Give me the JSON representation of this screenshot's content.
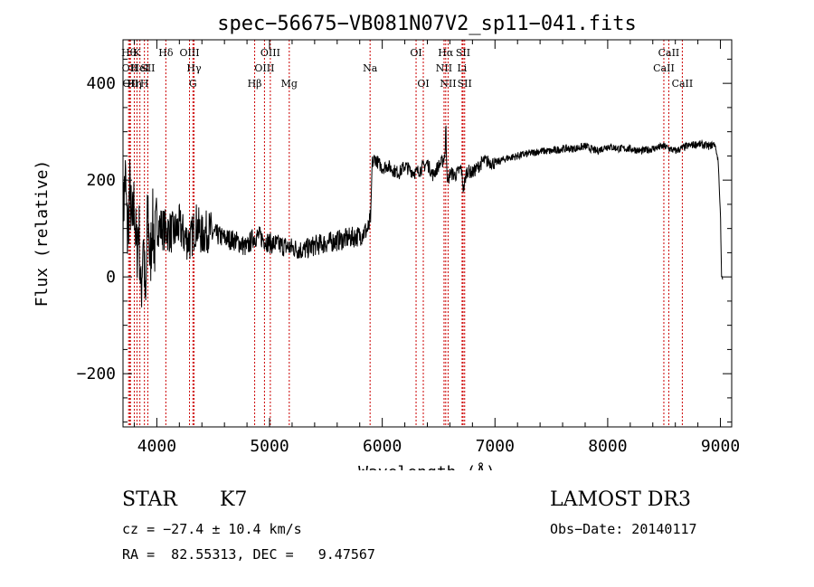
{
  "chart_data": {
    "type": "line",
    "title": "spec−56675−VB081N07V2_sp11−041.fits",
    "xlabel": "Wavelength (Å)",
    "ylabel": "Flux (relative)",
    "xlim": [
      3700,
      9100
    ],
    "ylim": [
      -310,
      490
    ],
    "xticks": [
      {
        "value": 4000,
        "label": "4000"
      },
      {
        "value": 5000,
        "label": "5000"
      },
      {
        "value": 6000,
        "label": "6000"
      },
      {
        "value": 7000,
        "label": "7000"
      },
      {
        "value": 8000,
        "label": "8000"
      },
      {
        "value": 9000,
        "label": "9000"
      }
    ],
    "yticks": [
      {
        "value": -200,
        "label": "−200"
      },
      {
        "value": 0,
        "label": "0"
      },
      {
        "value": 200,
        "label": "200"
      },
      {
        "value": 400,
        "label": "400"
      }
    ],
    "line_color": "#cc0000",
    "series": [
      {
        "name": "flux",
        "x": [
          3700,
          3720,
          3740,
          3760,
          3780,
          3800,
          3820,
          3840,
          3860,
          3880,
          3900,
          3920,
          3940,
          3960,
          3980,
          4000,
          4050,
          4100,
          4150,
          4200,
          4250,
          4300,
          4350,
          4400,
          4450,
          4500,
          4600,
          4700,
          4800,
          4850,
          4900,
          5000,
          5100,
          5200,
          5300,
          5400,
          5500,
          5600,
          5700,
          5800,
          5880,
          5900,
          5910,
          5920,
          5930,
          5950,
          6000,
          6050,
          6100,
          6150,
          6200,
          6250,
          6300,
          6350,
          6400,
          6450,
          6500,
          6540,
          6560,
          6564,
          6570,
          6580,
          6600,
          6650,
          6700,
          6720,
          6750,
          6800,
          6900,
          7000,
          7100,
          7200,
          7300,
          7400,
          7500,
          7600,
          7700,
          7800,
          7900,
          8000,
          8100,
          8200,
          8300,
          8400,
          8500,
          8600,
          8700,
          8800,
          8900,
          8950,
          8980,
          9000,
          9010,
          9020
        ],
        "y": [
          120,
          210,
          80,
          180,
          90,
          160,
          40,
          120,
          -50,
          100,
          -80,
          150,
          20,
          120,
          60,
          110,
          100,
          95,
          90,
          105,
          80,
          75,
          110,
          85,
          95,
          90,
          80,
          75,
          60,
          80,
          85,
          70,
          65,
          60,
          55,
          65,
          70,
          75,
          80,
          85,
          100,
          130,
          240,
          235,
          245,
          240,
          225,
          230,
          220,
          215,
          230,
          220,
          215,
          225,
          235,
          210,
          230,
          240,
          260,
          330,
          250,
          190,
          215,
          210,
          225,
          180,
          220,
          215,
          240,
          235,
          245,
          250,
          255,
          260,
          260,
          265,
          265,
          270,
          260,
          270,
          265,
          265,
          260,
          265,
          270,
          260,
          270,
          275,
          270,
          275,
          240,
          130,
          0,
          -5
        ]
      }
    ],
    "lines": [
      {
        "x": 3750,
        "row": 0,
        "label": "Hθ"
      },
      {
        "x": 3760,
        "row": 1,
        "label": "OII"
      },
      {
        "x": 3766,
        "row": 2,
        "label": "OII"
      },
      {
        "x": 3800,
        "row": 2,
        "label": "Hη"
      },
      {
        "x": 3824,
        "row": 0,
        "label": "K"
      },
      {
        "x": 3850,
        "row": 1,
        "label": "HeI"
      },
      {
        "x": 3890,
        "row": 2,
        "label": "H"
      },
      {
        "x": 3920,
        "row": 1,
        "label": "SII"
      },
      {
        "x": 4080,
        "row": 0,
        "label": "Hδ"
      },
      {
        "x": 4290,
        "row": 0,
        "label": "OIII"
      },
      {
        "x": 4330,
        "row": 1,
        "label": "Hγ"
      },
      {
        "x": 4320,
        "row": 2,
        "label": "G"
      },
      {
        "x": 4868,
        "row": 2,
        "label": "Hβ"
      },
      {
        "x": 4955,
        "row": 1,
        "label": "OIII"
      },
      {
        "x": 5007,
        "row": 0,
        "label": "OIII"
      },
      {
        "x": 5175,
        "row": 2,
        "label": "Mg"
      },
      {
        "x": 5892,
        "row": 1,
        "label": "Na"
      },
      {
        "x": 6300,
        "row": 0,
        "label": "OI"
      },
      {
        "x": 6364,
        "row": 2,
        "label": "OI"
      },
      {
        "x": 6548,
        "row": 1,
        "label": "NII"
      },
      {
        "x": 6563,
        "row": 0,
        "label": "Hα"
      },
      {
        "x": 6584,
        "row": 2,
        "label": "NII"
      },
      {
        "x": 6708,
        "row": 1,
        "label": "Li"
      },
      {
        "x": 6717,
        "row": 0,
        "label": "SII"
      },
      {
        "x": 6731,
        "row": 2,
        "label": "SII"
      },
      {
        "x": 8498,
        "row": 1,
        "label": "CaII"
      },
      {
        "x": 8542,
        "row": 0,
        "label": "CaII"
      },
      {
        "x": 8662,
        "row": 2,
        "label": "CaII"
      }
    ]
  },
  "info": {
    "class_type": "STAR",
    "subclass": "K7",
    "survey": "LAMOST DR3",
    "cz": "cz = −27.4 ± 10.4 km/s",
    "obs_date": "Obs−Date: 20140117",
    "radec": "RA =  82.55313, DEC =   9.47567"
  }
}
